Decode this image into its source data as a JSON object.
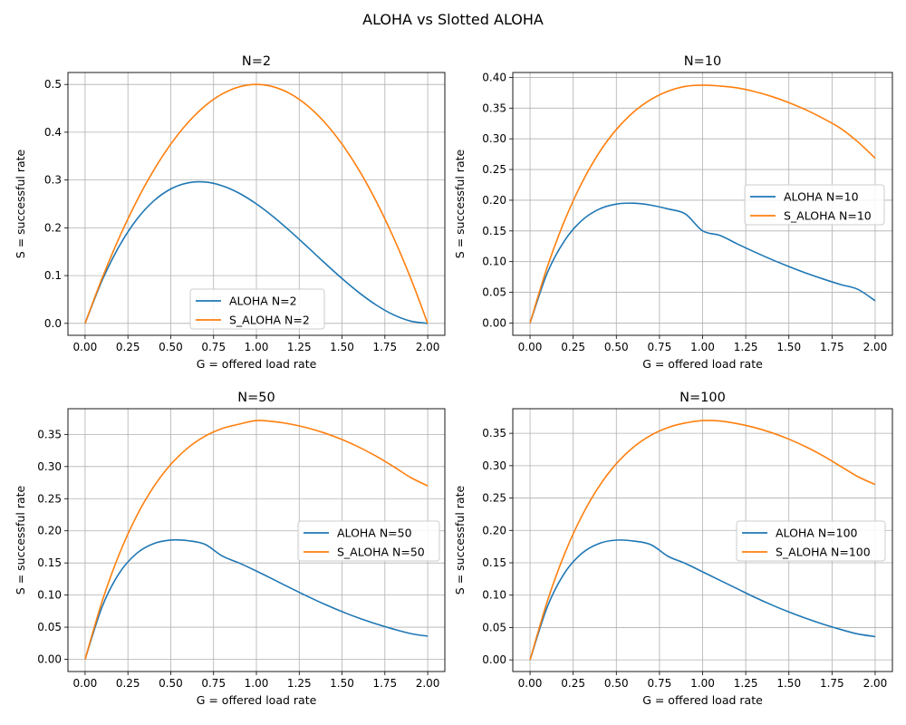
{
  "figure": {
    "title": "ALOHA vs Slotted ALOHA"
  },
  "colors": {
    "aloha": "#1f77b4",
    "s_aloha": "#ff7f0e",
    "grid": "#b0b0b0",
    "frame": "#000000"
  },
  "chart_data": [
    {
      "type": "line",
      "title": "N=2",
      "xlabel": "G = offered load rate",
      "ylabel": "S = successful rate",
      "xlim": [
        -0.1,
        2.1
      ],
      "ylim": [
        -0.025,
        0.525
      ],
      "xticks": [
        "0.00",
        "0.25",
        "0.50",
        "0.75",
        "1.00",
        "1.25",
        "1.50",
        "1.75",
        "2.00"
      ],
      "yticks": [
        "0.0",
        "0.1",
        "0.2",
        "0.3",
        "0.4",
        "0.5"
      ],
      "grid": true,
      "legend": "lower-center",
      "x": [
        0.0,
        0.1,
        0.2,
        0.3,
        0.4,
        0.5,
        0.6,
        0.7,
        0.8,
        0.9,
        1.0,
        1.1,
        1.2,
        1.3,
        1.4,
        1.5,
        1.6,
        1.7,
        1.8,
        1.9,
        2.0
      ],
      "series": [
        {
          "name": "ALOHA N=2",
          "values": [
            0.0,
            0.0903,
            0.162,
            0.2168,
            0.256,
            0.2813,
            0.294,
            0.2958,
            0.288,
            0.2723,
            0.25,
            0.2228,
            0.192,
            0.1593,
            0.126,
            0.0938,
            0.064,
            0.0383,
            0.018,
            0.0048,
            0.0
          ]
        },
        {
          "name": "S_ALOHA N=2",
          "values": [
            0.0,
            0.095,
            0.18,
            0.255,
            0.32,
            0.375,
            0.42,
            0.455,
            0.48,
            0.495,
            0.5,
            0.495,
            0.48,
            0.455,
            0.42,
            0.375,
            0.32,
            0.255,
            0.18,
            0.095,
            0.0
          ]
        }
      ]
    },
    {
      "type": "line",
      "title": "N=10",
      "xlabel": "G = offered load rate",
      "ylabel": "S = successful rate",
      "xlim": [
        -0.1,
        2.1
      ],
      "ylim": [
        -0.02,
        0.408
      ],
      "xticks": [
        "0.00",
        "0.25",
        "0.50",
        "0.75",
        "1.00",
        "1.25",
        "1.50",
        "1.75",
        "2.00"
      ],
      "yticks": [
        "0.00",
        "0.05",
        "0.10",
        "0.15",
        "0.20",
        "0.25",
        "0.30",
        "0.35",
        "0.40"
      ],
      "grid": true,
      "legend": "center-right",
      "x": [
        0.0,
        0.1,
        0.2,
        0.3,
        0.4,
        0.5,
        0.6,
        0.7,
        0.8,
        0.9,
        1.0,
        1.1,
        1.2,
        1.3,
        1.4,
        1.5,
        1.6,
        1.7,
        1.8,
        1.9,
        2.0
      ],
      "series": [
        {
          "name": "ALOHA N=10",
          "values": [
            0.0,
            0.0817,
            0.1342,
            0.167,
            0.1854,
            0.1937,
            0.1952,
            0.192,
            0.1858,
            0.1776,
            0.1501,
            0.1427,
            0.129,
            0.1159,
            0.1035,
            0.092,
            0.0813,
            0.0716,
            0.0627,
            0.0548,
            0.0362
          ]
        },
        {
          "name": "S_ALOHA N=10",
          "values": [
            0.0,
            0.0914,
            0.1668,
            0.2281,
            0.2773,
            0.3151,
            0.3436,
            0.364,
            0.3776,
            0.3854,
            0.3874,
            0.386,
            0.383,
            0.377,
            0.369,
            0.359,
            0.347,
            0.333,
            0.317,
            0.295,
            0.2684
          ]
        }
      ]
    },
    {
      "type": "line",
      "title": "N=50",
      "xlabel": "G = offered load rate",
      "ylabel": "S = successful rate",
      "xlim": [
        -0.1,
        2.1
      ],
      "ylim": [
        -0.019,
        0.39
      ],
      "xticks": [
        "0.00",
        "0.25",
        "0.50",
        "0.75",
        "1.00",
        "1.25",
        "1.50",
        "1.75",
        "2.00"
      ],
      "yticks": [
        "0.00",
        "0.05",
        "0.10",
        "0.15",
        "0.20",
        "0.25",
        "0.30",
        "0.35"
      ],
      "grid": true,
      "legend": "center-right",
      "x": [
        0.0,
        0.1,
        0.2,
        0.3,
        0.4,
        0.5,
        0.6,
        0.7,
        0.8,
        0.9,
        1.0,
        1.1,
        1.2,
        1.3,
        1.4,
        1.5,
        1.6,
        1.7,
        1.8,
        1.9,
        2.0
      ],
      "series": [
        {
          "name": "ALOHA N=50",
          "values": [
            0.0,
            0.0821,
            0.1343,
            0.1646,
            0.18,
            0.1856,
            0.1846,
            0.179,
            0.1609,
            0.1498,
            0.1374,
            0.1242,
            0.1108,
            0.0978,
            0.0855,
            0.0742,
            0.064,
            0.055,
            0.047,
            0.0401,
            0.036
          ]
        },
        {
          "name": "S_ALOHA N=50",
          "values": [
            0.0,
            0.0906,
            0.164,
            0.2226,
            0.2684,
            0.3033,
            0.3291,
            0.3473,
            0.3592,
            0.366,
            0.3716,
            0.37,
            0.366,
            0.36,
            0.352,
            0.342,
            0.33,
            0.316,
            0.3,
            0.283,
            0.27
          ]
        }
      ]
    },
    {
      "type": "line",
      "title": "N=100",
      "xlabel": "G = offered load rate",
      "ylabel": "S = successful rate",
      "xlim": [
        -0.1,
        2.1
      ],
      "ylim": [
        -0.018,
        0.388
      ],
      "xticks": [
        "0.00",
        "0.25",
        "0.50",
        "0.75",
        "1.00",
        "1.25",
        "1.50",
        "1.75",
        "2.00"
      ],
      "yticks": [
        "0.00",
        "0.05",
        "0.10",
        "0.15",
        "0.20",
        "0.25",
        "0.30",
        "0.35"
      ],
      "grid": true,
      "legend": "center-right",
      "x": [
        0.0,
        0.1,
        0.2,
        0.3,
        0.4,
        0.5,
        0.6,
        0.7,
        0.8,
        0.9,
        1.0,
        1.1,
        1.2,
        1.3,
        1.4,
        1.5,
        1.6,
        1.7,
        1.8,
        1.9,
        2.0
      ],
      "series": [
        {
          "name": "ALOHA N=100",
          "values": [
            0.0,
            0.082,
            0.1342,
            0.1645,
            0.1798,
            0.185,
            0.1835,
            0.178,
            0.16,
            0.149,
            0.136,
            0.123,
            0.11,
            0.097,
            0.085,
            0.074,
            0.064,
            0.055,
            0.047,
            0.04,
            0.036
          ]
        },
        {
          "name": "S_ALOHA N=100",
          "values": [
            0.0,
            0.0905,
            0.1638,
            0.2222,
            0.2681,
            0.303,
            0.3288,
            0.347,
            0.359,
            0.366,
            0.3697,
            0.369,
            0.365,
            0.359,
            0.351,
            0.341,
            0.329,
            0.315,
            0.299,
            0.283,
            0.271
          ]
        }
      ]
    }
  ]
}
